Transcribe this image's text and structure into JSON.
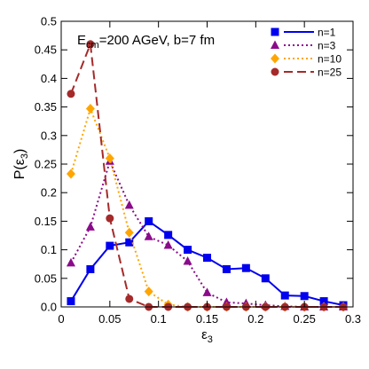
{
  "chart_data": {
    "type": "line",
    "annotation": {
      "prefix": "E",
      "subscript": "cm",
      "suffix": "=200 AGeV, b=7 fm"
    },
    "xlabel": {
      "base": "ε",
      "sub": "3"
    },
    "ylabel": {
      "prefix": "P(",
      "base": "ε",
      "sub": "3",
      "suffix": ")"
    },
    "xlim": [
      0,
      0.3
    ],
    "ylim": [
      0,
      0.5
    ],
    "xticks": [
      0,
      0.05,
      0.1,
      0.15,
      0.2,
      0.25,
      0.3
    ],
    "xtick_labels": [
      "0",
      "0.05",
      "0.1",
      "0.15",
      "0.2",
      "0.25",
      "0.3"
    ],
    "yticks": [
      0,
      0.05,
      0.1,
      0.15,
      0.2,
      0.25,
      0.3,
      0.35,
      0.4,
      0.45,
      0.5
    ],
    "ytick_labels": [
      "0.0",
      "0.05",
      "0.1",
      "0.15",
      "0.2",
      "0.25",
      "0.3",
      "0.35",
      "0.4",
      "0.45",
      "0.5"
    ],
    "grid": false,
    "legend_position": "top-right",
    "series": [
      {
        "name": "n=1",
        "color": "#0000ee",
        "marker": "square",
        "dash": "solid",
        "x": [
          0.01,
          0.03,
          0.05,
          0.07,
          0.09,
          0.11,
          0.13,
          0.15,
          0.17,
          0.19,
          0.21,
          0.23,
          0.25,
          0.27,
          0.29
        ],
        "y": [
          0.01,
          0.066,
          0.107,
          0.113,
          0.15,
          0.126,
          0.1,
          0.086,
          0.066,
          0.068,
          0.05,
          0.02,
          0.019,
          0.01,
          0.003
        ]
      },
      {
        "name": "n=3",
        "color": "#8b0a8b",
        "marker": "triangle",
        "dash": "dotted",
        "x": [
          0.01,
          0.03,
          0.05,
          0.07,
          0.09,
          0.11,
          0.13,
          0.15,
          0.17,
          0.19,
          0.21,
          0.23,
          0.25,
          0.27,
          0.29
        ],
        "y": [
          0.077,
          0.14,
          0.255,
          0.178,
          0.123,
          0.108,
          0.08,
          0.025,
          0.008,
          0.006,
          0.003,
          0.001,
          0.0,
          0.0,
          0.0
        ]
      },
      {
        "name": "n=10",
        "color": "#ffa500",
        "marker": "diamond",
        "dash": "dotted",
        "x": [
          0.01,
          0.03,
          0.05,
          0.07,
          0.09,
          0.11,
          0.13,
          0.15,
          0.17,
          0.19,
          0.21,
          0.23,
          0.25,
          0.27,
          0.29
        ],
        "y": [
          0.233,
          0.347,
          0.26,
          0.13,
          0.027,
          0.004,
          0.0,
          0.0,
          0.0,
          0.0,
          0.0,
          0.0,
          0.0,
          0.0,
          0.0
        ]
      },
      {
        "name": "n=25",
        "color": "#a52a2a",
        "marker": "circle",
        "dash": "dashed",
        "x": [
          0.01,
          0.03,
          0.05,
          0.07,
          0.09,
          0.11,
          0.13,
          0.15,
          0.17,
          0.19,
          0.21,
          0.23,
          0.25,
          0.27,
          0.29
        ],
        "y": [
          0.373,
          0.46,
          0.155,
          0.014,
          0.0,
          0.0,
          0.0,
          0.0,
          0.0,
          0.0,
          0.0,
          0.0,
          0.0,
          0.0,
          0.0
        ]
      }
    ]
  }
}
